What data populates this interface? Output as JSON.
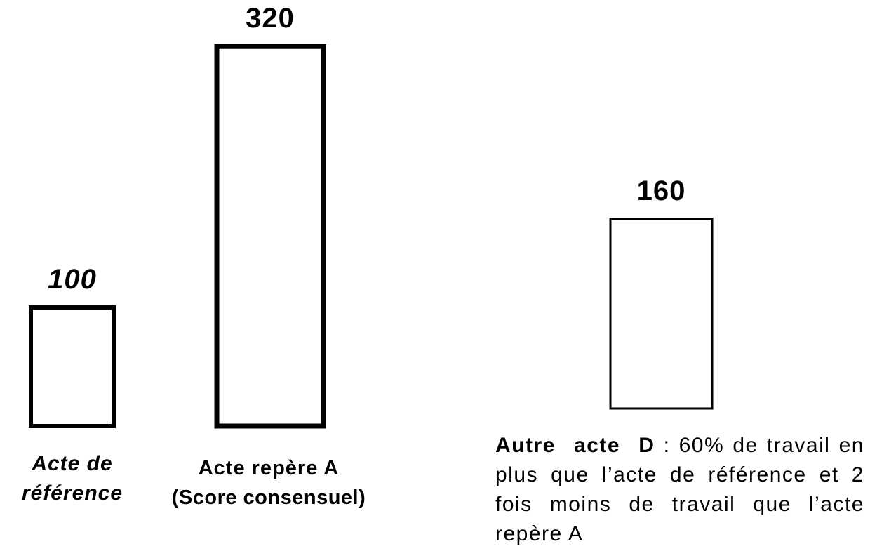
{
  "chart_data": {
    "type": "bar",
    "categories": [
      "Acte de référence",
      "Acte repère A",
      "Autre acte D"
    ],
    "values": [
      100,
      320,
      160
    ],
    "annotations": [
      "(Score consensuel)",
      ": 60% de travail en plus que l’acte de référence et 2 fois moins de travail que l’acte repère A"
    ],
    "color": "#000000"
  }
}
